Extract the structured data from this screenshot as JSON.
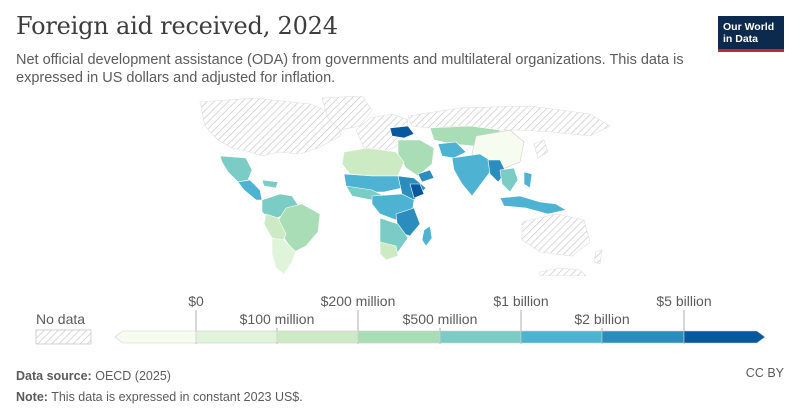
{
  "header": {
    "title": "Foreign aid received, 2024",
    "subtitle": "Net official development assistance (ODA) from governments and multilateral organizations. This data is expressed in US dollars and adjusted for inflation."
  },
  "logo": {
    "line1": "Our World",
    "line2": "in Data"
  },
  "legend": {
    "no_data_label": "No data",
    "top_labels": [
      "$0",
      "$200 million",
      "$1 billion",
      "$5 billion"
    ],
    "bottom_labels": [
      "$100 million",
      "$500 million",
      "$2 billion"
    ],
    "bin_colors": [
      "#f7fcf0",
      "#e0f3db",
      "#ccebc5",
      "#a8ddb5",
      "#7bccc4",
      "#4eb3d3",
      "#2b8cbe",
      "#08589e"
    ]
  },
  "footer": {
    "source_label": "Data source:",
    "source_value": "OECD (2025)",
    "note_label": "Note:",
    "note_value": "This data is expressed in constant 2023 US$.",
    "license": "CC BY"
  }
}
